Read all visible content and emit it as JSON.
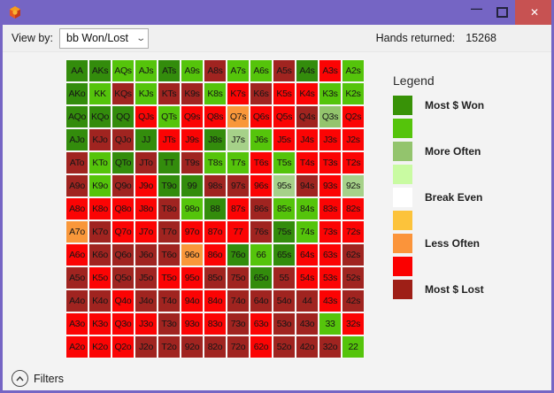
{
  "titlebar": {
    "minimize_glyph": "—",
    "close_glyph": "✕"
  },
  "toolbar": {
    "view_by_label": "View by:",
    "view_by_value": "bb Won/Lost",
    "hands_returned_label": "Hands returned:",
    "hands_returned_value": "15268"
  },
  "legend": {
    "title": "Legend",
    "items": [
      {
        "color": "#389207",
        "label": "Most $ Won"
      },
      {
        "color": "#55c40b",
        "label": ""
      },
      {
        "color": "#93c46d",
        "label": "More Often"
      },
      {
        "color": "#c9fba2",
        "label": ""
      },
      {
        "color": "#ffffff",
        "label": "Break Even"
      },
      {
        "color": "#fcc33b",
        "label": ""
      },
      {
        "color": "#fb943a",
        "label": "Less Often"
      },
      {
        "color": "#fb0000",
        "label": ""
      },
      {
        "color": "#9e1f17",
        "label": "Most $ Lost"
      }
    ]
  },
  "palette": {
    "G1": "#338c0c",
    "G2": "#55c40b",
    "G3": "#93c46d",
    "G3b": "#a6d189",
    "G4": "#c9fba2",
    "W": "#ffffff",
    "Y": "#fcc33b",
    "O": "#f9973a",
    "R": "#fb0404",
    "DR": "#a02420"
  },
  "grid": {
    "rows": [
      [
        [
          "AA",
          "G1"
        ],
        [
          "AKs",
          "G1"
        ],
        [
          "AQs",
          "G2"
        ],
        [
          "AJs",
          "G2"
        ],
        [
          "ATs",
          "G1"
        ],
        [
          "A9s",
          "G2"
        ],
        [
          "A8s",
          "DR"
        ],
        [
          "A7s",
          "G2"
        ],
        [
          "A6s",
          "G2"
        ],
        [
          "A5s",
          "DR"
        ],
        [
          "A4s",
          "G1"
        ],
        [
          "A3s",
          "R"
        ],
        [
          "A2s",
          "G2"
        ]
      ],
      [
        [
          "AKo",
          "G1"
        ],
        [
          "KK",
          "G2"
        ],
        [
          "KQs",
          "DR"
        ],
        [
          "KJs",
          "G2"
        ],
        [
          "KTs",
          "DR"
        ],
        [
          "K9s",
          "DR"
        ],
        [
          "K8s",
          "G2"
        ],
        [
          "K7s",
          "R"
        ],
        [
          "K6s",
          "DR"
        ],
        [
          "K5s",
          "R"
        ],
        [
          "K4s",
          "R"
        ],
        [
          "K3s",
          "G2"
        ],
        [
          "K2s",
          "G2"
        ]
      ],
      [
        [
          "AQo",
          "G1"
        ],
        [
          "KQo",
          "G1"
        ],
        [
          "QQ",
          "G1"
        ],
        [
          "QJs",
          "R"
        ],
        [
          "QTs",
          "G2"
        ],
        [
          "Q9s",
          "R"
        ],
        [
          "Q8s",
          "R"
        ],
        [
          "Q7s",
          "O"
        ],
        [
          "Q6s",
          "R"
        ],
        [
          "Q5s",
          "R"
        ],
        [
          "Q4s",
          "DR"
        ],
        [
          "Q3s",
          "G3"
        ],
        [
          "Q2s",
          "R"
        ]
      ],
      [
        [
          "AJo",
          "G1"
        ],
        [
          "KJo",
          "DR"
        ],
        [
          "QJo",
          "DR"
        ],
        [
          "JJ",
          "G1"
        ],
        [
          "JTs",
          "R"
        ],
        [
          "J9s",
          "R"
        ],
        [
          "J8s",
          "G1"
        ],
        [
          "J7s",
          "G3b"
        ],
        [
          "J6s",
          "G2"
        ],
        [
          "J5s",
          "R"
        ],
        [
          "J4s",
          "R"
        ],
        [
          "J3s",
          "R"
        ],
        [
          "J2s",
          "R"
        ]
      ],
      [
        [
          "ATo",
          "DR"
        ],
        [
          "KTo",
          "G2"
        ],
        [
          "QTo",
          "G1"
        ],
        [
          "JTo",
          "DR"
        ],
        [
          "TT",
          "G1"
        ],
        [
          "T9s",
          "DR"
        ],
        [
          "T8s",
          "G2"
        ],
        [
          "T7s",
          "G2"
        ],
        [
          "T6s",
          "R"
        ],
        [
          "T5s",
          "G2"
        ],
        [
          "T4s",
          "R"
        ],
        [
          "T3s",
          "R"
        ],
        [
          "T2s",
          "R"
        ]
      ],
      [
        [
          "A9o",
          "DR"
        ],
        [
          "K9o",
          "G2"
        ],
        [
          "Q9o",
          "DR"
        ],
        [
          "J9o",
          "R"
        ],
        [
          "T9o",
          "G1"
        ],
        [
          "99",
          "G1"
        ],
        [
          "98s",
          "DR"
        ],
        [
          "97s",
          "DR"
        ],
        [
          "96s",
          "R"
        ],
        [
          "95s",
          "G3b"
        ],
        [
          "94s",
          "DR"
        ],
        [
          "93s",
          "R"
        ],
        [
          "92s",
          "G3b"
        ]
      ],
      [
        [
          "A8o",
          "R"
        ],
        [
          "K8o",
          "R"
        ],
        [
          "Q8o",
          "R"
        ],
        [
          "J8o",
          "R"
        ],
        [
          "T8o",
          "DR"
        ],
        [
          "98o",
          "G2"
        ],
        [
          "88",
          "G1"
        ],
        [
          "87s",
          "R"
        ],
        [
          "86s",
          "DR"
        ],
        [
          "85s",
          "G2"
        ],
        [
          "84s",
          "G2"
        ],
        [
          "83s",
          "R"
        ],
        [
          "82s",
          "R"
        ]
      ],
      [
        [
          "A7o",
          "O"
        ],
        [
          "K7o",
          "DR"
        ],
        [
          "Q7o",
          "R"
        ],
        [
          "J7o",
          "R"
        ],
        [
          "T7o",
          "DR"
        ],
        [
          "97o",
          "R"
        ],
        [
          "87o",
          "R"
        ],
        [
          "77",
          "R"
        ],
        [
          "76s",
          "DR"
        ],
        [
          "75s",
          "G1"
        ],
        [
          "74s",
          "G2"
        ],
        [
          "73s",
          "R"
        ],
        [
          "72s",
          "R"
        ]
      ],
      [
        [
          "A6o",
          "R"
        ],
        [
          "K6o",
          "DR"
        ],
        [
          "Q6o",
          "DR"
        ],
        [
          "J6o",
          "DR"
        ],
        [
          "T6o",
          "DR"
        ],
        [
          "96o",
          "O"
        ],
        [
          "86o",
          "R"
        ],
        [
          "76o",
          "G1"
        ],
        [
          "66",
          "G2"
        ],
        [
          "65s",
          "G1"
        ],
        [
          "64s",
          "R"
        ],
        [
          "63s",
          "R"
        ],
        [
          "62s",
          "DR"
        ]
      ],
      [
        [
          "A5o",
          "DR"
        ],
        [
          "K5o",
          "R"
        ],
        [
          "Q5o",
          "DR"
        ],
        [
          "J5o",
          "DR"
        ],
        [
          "T5o",
          "R"
        ],
        [
          "95o",
          "R"
        ],
        [
          "85o",
          "DR"
        ],
        [
          "75o",
          "DR"
        ],
        [
          "65o",
          "G1"
        ],
        [
          "55",
          "DR"
        ],
        [
          "54s",
          "R"
        ],
        [
          "53s",
          "R"
        ],
        [
          "52s",
          "DR"
        ]
      ],
      [
        [
          "A4o",
          "DR"
        ],
        [
          "K4o",
          "DR"
        ],
        [
          "Q4o",
          "R"
        ],
        [
          "J4o",
          "DR"
        ],
        [
          "T4o",
          "DR"
        ],
        [
          "94o",
          "R"
        ],
        [
          "84o",
          "R"
        ],
        [
          "74o",
          "DR"
        ],
        [
          "64o",
          "DR"
        ],
        [
          "54o",
          "DR"
        ],
        [
          "44",
          "DR"
        ],
        [
          "43s",
          "R"
        ],
        [
          "42s",
          "DR"
        ]
      ],
      [
        [
          "A3o",
          "R"
        ],
        [
          "K3o",
          "R"
        ],
        [
          "Q3o",
          "R"
        ],
        [
          "J3o",
          "R"
        ],
        [
          "T3o",
          "DR"
        ],
        [
          "93o",
          "R"
        ],
        [
          "83o",
          "R"
        ],
        [
          "73o",
          "DR"
        ],
        [
          "63o",
          "R"
        ],
        [
          "53o",
          "DR"
        ],
        [
          "43o",
          "DR"
        ],
        [
          "33",
          "G2"
        ],
        [
          "32s",
          "R"
        ]
      ],
      [
        [
          "A2o",
          "R"
        ],
        [
          "K2o",
          "R"
        ],
        [
          "Q2o",
          "R"
        ],
        [
          "J2o",
          "DR"
        ],
        [
          "T2o",
          "DR"
        ],
        [
          "92o",
          "DR"
        ],
        [
          "82o",
          "DR"
        ],
        [
          "72o",
          "DR"
        ],
        [
          "62o",
          "R"
        ],
        [
          "52o",
          "DR"
        ],
        [
          "42o",
          "DR"
        ],
        [
          "32o",
          "DR"
        ],
        [
          "22",
          "G2"
        ]
      ]
    ]
  },
  "statusbar": {
    "filters_label": "Filters"
  }
}
